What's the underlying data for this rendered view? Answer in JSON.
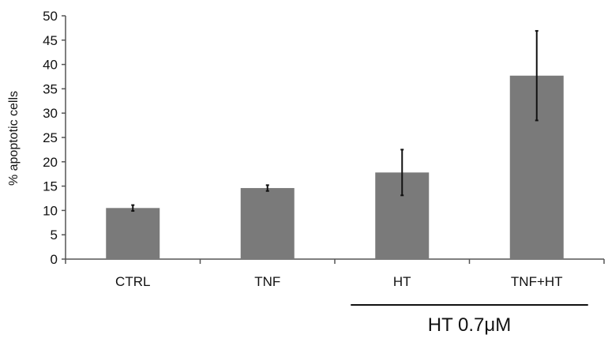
{
  "chart_data": {
    "type": "bar",
    "categories": [
      "CTRL",
      "TNF",
      "HT",
      "TNF+HT"
    ],
    "values": [
      10.5,
      14.6,
      17.8,
      37.7
    ],
    "errors": [
      0.6,
      0.6,
      4.7,
      9.2
    ],
    "ylabel": "% apoptotic cells",
    "xlabel": "",
    "ylim": [
      0,
      50
    ],
    "yticks": [
      0,
      5,
      10,
      15,
      20,
      25,
      30,
      35,
      40,
      45,
      50
    ],
    "grid": false,
    "bar_color": "#7a7a7a",
    "group_annotation": {
      "label": "HT 0.7μM",
      "categories": [
        "HT",
        "TNF+HT"
      ]
    }
  }
}
